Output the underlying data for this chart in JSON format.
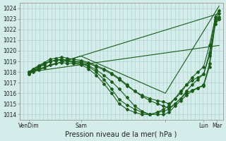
{
  "title": "",
  "xlabel": "Pression niveau de la mer( hPa )",
  "ylabel": "",
  "bg_color": "#d4ecea",
  "grid_color": "#b0d4d0",
  "line_color": "#1a5c1a",
  "yticks": [
    1014,
    1015,
    1016,
    1017,
    1018,
    1019,
    1020,
    1021,
    1022,
    1023,
    1024
  ],
  "ylim": [
    1013.5,
    1024.5
  ],
  "xlim": [
    0.0,
    5.3
  ],
  "xtick_positions": [
    0.25,
    1.6,
    3.8,
    4.8,
    5.15
  ],
  "xtick_labels": [
    "VenDim",
    "Sam",
    "",
    "Lun",
    "Mar"
  ],
  "series": [
    {
      "x": [
        0.25,
        0.35,
        0.5,
        0.65,
        0.8,
        0.95,
        1.1,
        1.25,
        1.4,
        1.6,
        1.8,
        2.0,
        2.2,
        2.4,
        2.6,
        2.8,
        3.0,
        3.2,
        3.4,
        3.6,
        3.75,
        3.9,
        4.05,
        4.2,
        4.35,
        4.5,
        4.65,
        4.8,
        4.95,
        5.1,
        5.2
      ],
      "y": [
        1018.0,
        1018.2,
        1018.5,
        1018.8,
        1019.0,
        1019.1,
        1019.2,
        1019.1,
        1019.0,
        1019.0,
        1018.8,
        1018.5,
        1018.2,
        1017.8,
        1017.3,
        1016.7,
        1016.2,
        1015.8,
        1015.5,
        1015.3,
        1015.2,
        1015.0,
        1015.5,
        1016.0,
        1016.8,
        1017.5,
        1018.0,
        1018.5,
        1020.5,
        1023.0,
        1023.5
      ],
      "marker": "D",
      "ms": 2.0
    },
    {
      "x": [
        0.25,
        0.35,
        0.5,
        0.65,
        0.8,
        0.95,
        1.1,
        1.25,
        1.4,
        1.6,
        1.8,
        2.0,
        2.2,
        2.4,
        2.6,
        2.8,
        3.0,
        3.2,
        3.4,
        3.6,
        3.75,
        3.9,
        4.05,
        4.2,
        4.35,
        4.5,
        4.65,
        4.8,
        4.95,
        5.1,
        5.2
      ],
      "y": [
        1018.0,
        1018.3,
        1018.6,
        1018.9,
        1019.2,
        1019.3,
        1019.4,
        1019.3,
        1019.2,
        1019.1,
        1018.9,
        1018.6,
        1018.3,
        1017.9,
        1017.4,
        1016.8,
        1016.2,
        1015.7,
        1015.3,
        1015.0,
        1014.8,
        1014.6,
        1015.0,
        1015.5,
        1016.2,
        1016.8,
        1017.3,
        1017.8,
        1019.8,
        1023.2,
        1023.8
      ],
      "marker": "D",
      "ms": 2.0
    },
    {
      "x": [
        0.25,
        0.35,
        0.5,
        0.65,
        0.8,
        0.95,
        1.1,
        1.25,
        1.4,
        1.6,
        1.8,
        2.0,
        2.2,
        2.4,
        2.6,
        2.8,
        3.0,
        3.2,
        3.4,
        3.6,
        3.75,
        3.9,
        4.05,
        4.2,
        4.35,
        4.5,
        4.65,
        4.8,
        4.95,
        5.1,
        5.2
      ],
      "y": [
        1017.8,
        1018.1,
        1018.4,
        1018.7,
        1019.0,
        1019.1,
        1019.2,
        1019.1,
        1019.0,
        1018.9,
        1018.6,
        1018.2,
        1017.7,
        1017.1,
        1016.4,
        1015.6,
        1014.8,
        1014.3,
        1014.0,
        1014.0,
        1014.0,
        1014.2,
        1014.8,
        1015.3,
        1015.8,
        1016.2,
        1016.5,
        1016.8,
        1018.8,
        1022.8,
        1023.2
      ],
      "marker": "D",
      "ms": 2.0
    },
    {
      "x": [
        0.25,
        0.35,
        0.5,
        0.65,
        0.8,
        0.95,
        1.1,
        1.25,
        1.4,
        1.6,
        1.8,
        2.0,
        2.2,
        2.4,
        2.6,
        2.8,
        3.0,
        3.2,
        3.4,
        3.6,
        3.75,
        3.9,
        4.05,
        4.2,
        4.35,
        4.5,
        4.65,
        4.8,
        4.95,
        5.1,
        5.2
      ],
      "y": [
        1017.8,
        1018.0,
        1018.2,
        1018.4,
        1018.7,
        1018.8,
        1018.9,
        1018.8,
        1018.8,
        1018.7,
        1018.3,
        1017.7,
        1016.9,
        1016.0,
        1015.0,
        1014.5,
        1014.2,
        1014.0,
        1014.0,
        1014.2,
        1014.3,
        1014.5,
        1015.0,
        1015.5,
        1016.0,
        1016.3,
        1016.5,
        1016.7,
        1018.5,
        1022.5,
        1023.0
      ],
      "marker": "D",
      "ms": 2.0
    },
    {
      "x": [
        0.25,
        0.35,
        0.5,
        0.65,
        0.8,
        0.95,
        1.1,
        1.25,
        1.4,
        1.6,
        1.8,
        2.0,
        2.2,
        2.4,
        2.6,
        2.8,
        3.0,
        3.2,
        3.4,
        3.6,
        3.75,
        3.9,
        4.05,
        4.2,
        4.35,
        4.5,
        4.65,
        4.8,
        4.95,
        5.1,
        5.2
      ],
      "y": [
        1018.0,
        1018.2,
        1018.5,
        1018.8,
        1019.0,
        1019.1,
        1019.1,
        1019.0,
        1018.9,
        1018.8,
        1018.5,
        1018.0,
        1017.3,
        1016.4,
        1015.4,
        1014.9,
        1014.5,
        1014.2,
        1014.0,
        1014.2,
        1014.5,
        1014.8,
        1015.5,
        1016.2,
        1016.8,
        1017.2,
        1017.5,
        1017.8,
        1019.5,
        1022.5,
        1023.0
      ],
      "marker": "D",
      "ms": 2.0
    },
    {
      "x": [
        0.25,
        5.2
      ],
      "y": [
        1018.0,
        1020.5
      ],
      "marker": null,
      "ms": 0
    },
    {
      "x": [
        0.25,
        5.2
      ],
      "y": [
        1018.0,
        1023.5
      ],
      "marker": null,
      "ms": 0
    },
    {
      "x": [
        0.25,
        1.6,
        3.8,
        5.2
      ],
      "y": [
        1018.0,
        1019.5,
        1016.0,
        1024.2
      ],
      "marker": null,
      "ms": 0
    }
  ]
}
